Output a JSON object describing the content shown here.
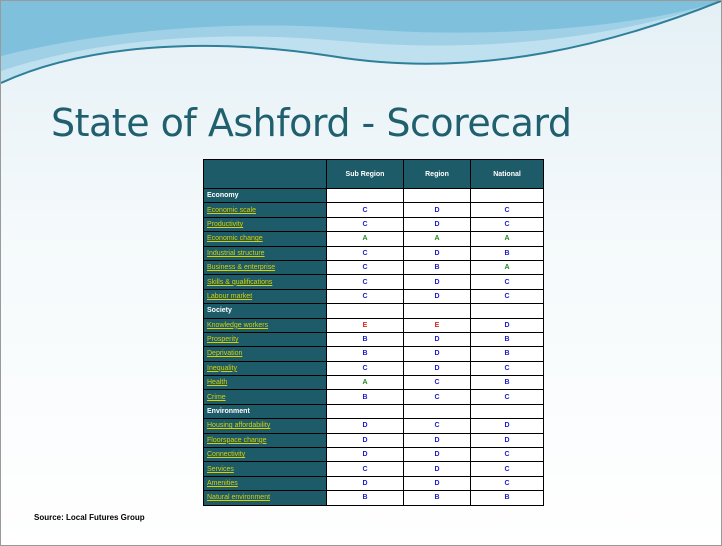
{
  "title": "State of Ashford - Scorecard",
  "table": {
    "columns": [
      "Sub Region",
      "Region",
      "National"
    ],
    "sections": [
      {
        "name": "Economy",
        "rows": [
          {
            "label": "Economic scale",
            "grades": [
              "C",
              "D",
              "C"
            ]
          },
          {
            "label": "Productivity",
            "grades": [
              "C",
              "D",
              "C"
            ]
          },
          {
            "label": "Economic change",
            "grades": [
              "A",
              "A",
              "A"
            ]
          },
          {
            "label": "Industrial structure",
            "grades": [
              "C",
              "D",
              "B"
            ]
          },
          {
            "label": "Business & enterprise",
            "grades": [
              "C",
              "B",
              "A"
            ]
          },
          {
            "label": "Skills & qualifications",
            "grades": [
              "C",
              "D",
              "C"
            ]
          },
          {
            "label": "Labour market",
            "grades": [
              "C",
              "D",
              "C"
            ]
          }
        ]
      },
      {
        "name": "Society",
        "rows": [
          {
            "label": "Knowledge workers",
            "grades": [
              "E",
              "E",
              "D"
            ]
          },
          {
            "label": "Prosperity",
            "grades": [
              "B",
              "D",
              "B"
            ]
          },
          {
            "label": "Deprivation",
            "grades": [
              "B",
              "D",
              "B"
            ]
          },
          {
            "label": "Inequality",
            "grades": [
              "C",
              "D",
              "C"
            ]
          },
          {
            "label": "Health",
            "grades": [
              "A",
              "C",
              "B"
            ]
          },
          {
            "label": "Crime",
            "grades": [
              "B",
              "C",
              "C"
            ]
          }
        ]
      },
      {
        "name": "Environment",
        "rows": [
          {
            "label": "Housing affordability",
            "grades": [
              "D",
              "C",
              "D"
            ]
          },
          {
            "label": "Floorspace change",
            "grades": [
              "D",
              "D",
              "D"
            ]
          },
          {
            "label": "Connectivity",
            "grades": [
              "D",
              "D",
              "C"
            ]
          },
          {
            "label": "Services",
            "grades": [
              "C",
              "D",
              "C"
            ]
          },
          {
            "label": "Amenities",
            "grades": [
              "D",
              "D",
              "C"
            ]
          },
          {
            "label": "Natural environment",
            "grades": [
              "B",
              "B",
              "B"
            ]
          }
        ]
      }
    ]
  },
  "source": "Source: Local Futures Group"
}
